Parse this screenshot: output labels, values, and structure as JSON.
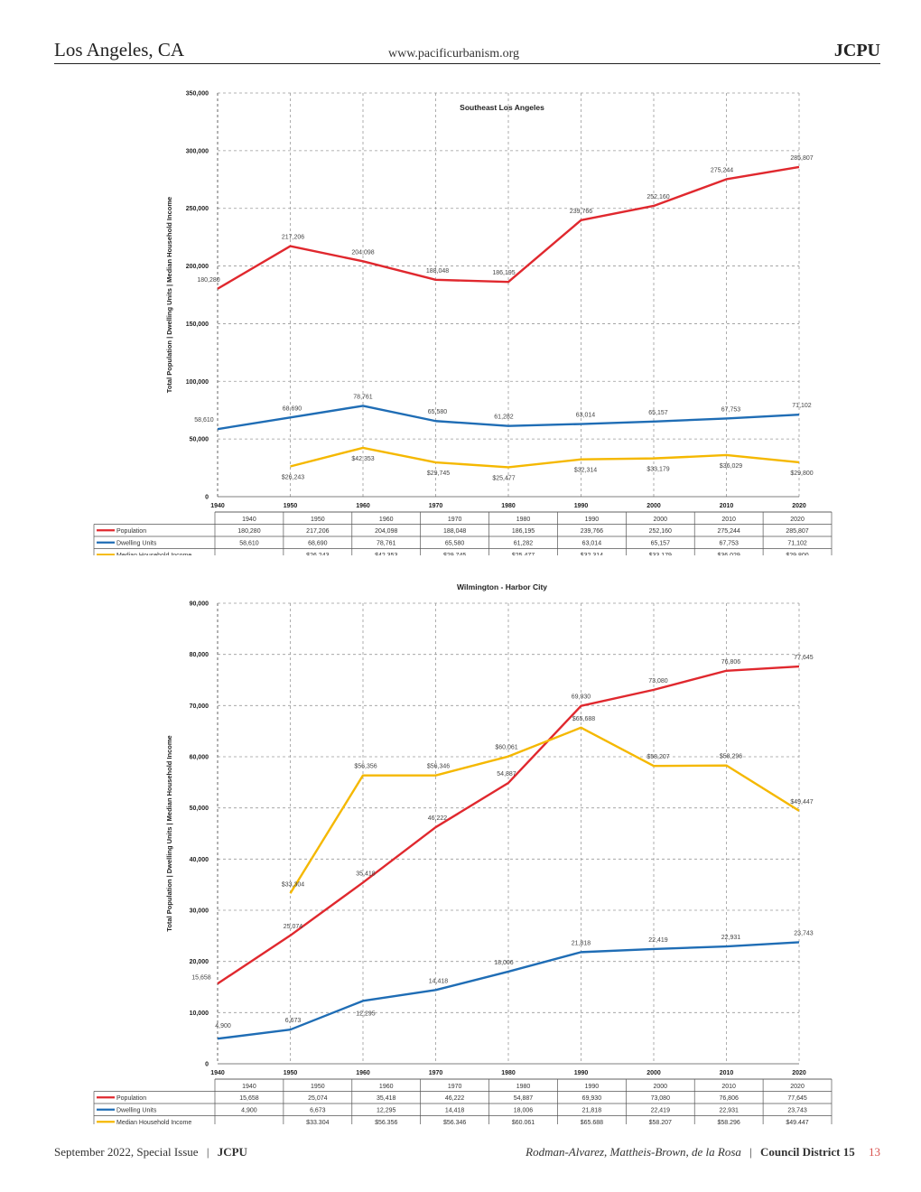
{
  "header": {
    "left": "Los Angeles, CA",
    "center": "www.pacificurbanism.org",
    "right": "JCPU"
  },
  "footer": {
    "left_date": "September 2022, Special Issue",
    "left_sep": "|",
    "left_journal": "JCPU",
    "authors": "Rodman-Alvarez, Mattheis-Brown, de la Rosa",
    "right_sep": "|",
    "district": "Council District 15",
    "page": "13"
  },
  "colors": {
    "population": "#e0282e",
    "dwelling": "#1f6db5",
    "income": "#f5b800",
    "grid": "#9a9a9a",
    "text": "#333333"
  },
  "chart_data": [
    {
      "type": "line",
      "title": "Southeast Los Angeles",
      "ylabel": "Total Population | Dwelling Units | Median Household Income",
      "xlabel": "",
      "ylim": [
        0,
        350000
      ],
      "yticks": [
        "0",
        "50,000",
        "100,000",
        "150,000",
        "200,000",
        "250,000",
        "300,000",
        "350,000"
      ],
      "ytick_values": [
        0,
        50000,
        100000,
        150000,
        200000,
        250000,
        300000,
        350000
      ],
      "categories": [
        "1940",
        "1950",
        "1960",
        "1970",
        "1980",
        "1990",
        "2000",
        "2010",
        "2020"
      ],
      "series": [
        {
          "name": "Population",
          "color": "#e0282e",
          "values": [
            180280,
            217206,
            204098,
            188048,
            186195,
            239766,
            252160,
            275244,
            285807
          ],
          "labels": [
            "180,280",
            "217,206",
            "204,098",
            "188,048",
            "186,195",
            "239,766",
            "252,160",
            "275,244",
            "285,807"
          ]
        },
        {
          "name": "Dwelling Units",
          "color": "#1f6db5",
          "values": [
            58610,
            68690,
            78761,
            65580,
            61282,
            63014,
            65157,
            67753,
            71102
          ],
          "labels": [
            "58,610",
            "68,690",
            "78,761",
            "65,580",
            "61,282",
            "63,014",
            "65,157",
            "67,753",
            "71,102"
          ]
        },
        {
          "name": "Median Household Income",
          "color": "#f5b800",
          "values": [
            null,
            26243,
            42353,
            29745,
            25477,
            32314,
            33179,
            36029,
            29800
          ],
          "labels": [
            "",
            "$26,243",
            "$42,353",
            "$29,745",
            "$25,477",
            "$32,314",
            "$33,179",
            "$36,029",
            "$29,800"
          ]
        }
      ]
    },
    {
      "type": "line",
      "title": "Wilmington - Harbor City",
      "ylabel": "Total Population | Dwelling Units | Median Household Income",
      "xlabel": "",
      "ylim": [
        0,
        90000
      ],
      "yticks": [
        "0",
        "10,000",
        "20,000",
        "30,000",
        "40,000",
        "50,000",
        "60,000",
        "70,000",
        "80,000",
        "90,000"
      ],
      "ytick_values": [
        0,
        10000,
        20000,
        30000,
        40000,
        50000,
        60000,
        70000,
        80000,
        90000
      ],
      "categories": [
        "1940",
        "1950",
        "1960",
        "1970",
        "1980",
        "1990",
        "2000",
        "2010",
        "2020"
      ],
      "series": [
        {
          "name": "Population",
          "color": "#e0282e",
          "values": [
            15658,
            25074,
            35418,
            46222,
            54887,
            69930,
            73080,
            76806,
            77645
          ],
          "labels": [
            "15,658",
            "25,074",
            "35,418",
            "46,222",
            "54,887",
            "69,930",
            "73,080",
            "76,806",
            "77,645"
          ]
        },
        {
          "name": "Dwelling Units",
          "color": "#1f6db5",
          "values": [
            4900,
            6673,
            12295,
            14418,
            18006,
            21818,
            22419,
            22931,
            23743
          ],
          "labels": [
            "4,900",
            "6,673",
            "12,295",
            "14,418",
            "18,006",
            "21,818",
            "22,419",
            "22,931",
            "23,743"
          ]
        },
        {
          "name": "Median Household Income",
          "color": "#f5b800",
          "values": [
            null,
            33304,
            56356,
            56346,
            60061,
            65688,
            58207,
            58296,
            49447
          ],
          "labels": [
            "",
            "$33,304",
            "$56,356",
            "$56,346",
            "$60,061",
            "$65,688",
            "$58,207",
            "$58,296",
            "$49,447"
          ]
        }
      ]
    }
  ]
}
